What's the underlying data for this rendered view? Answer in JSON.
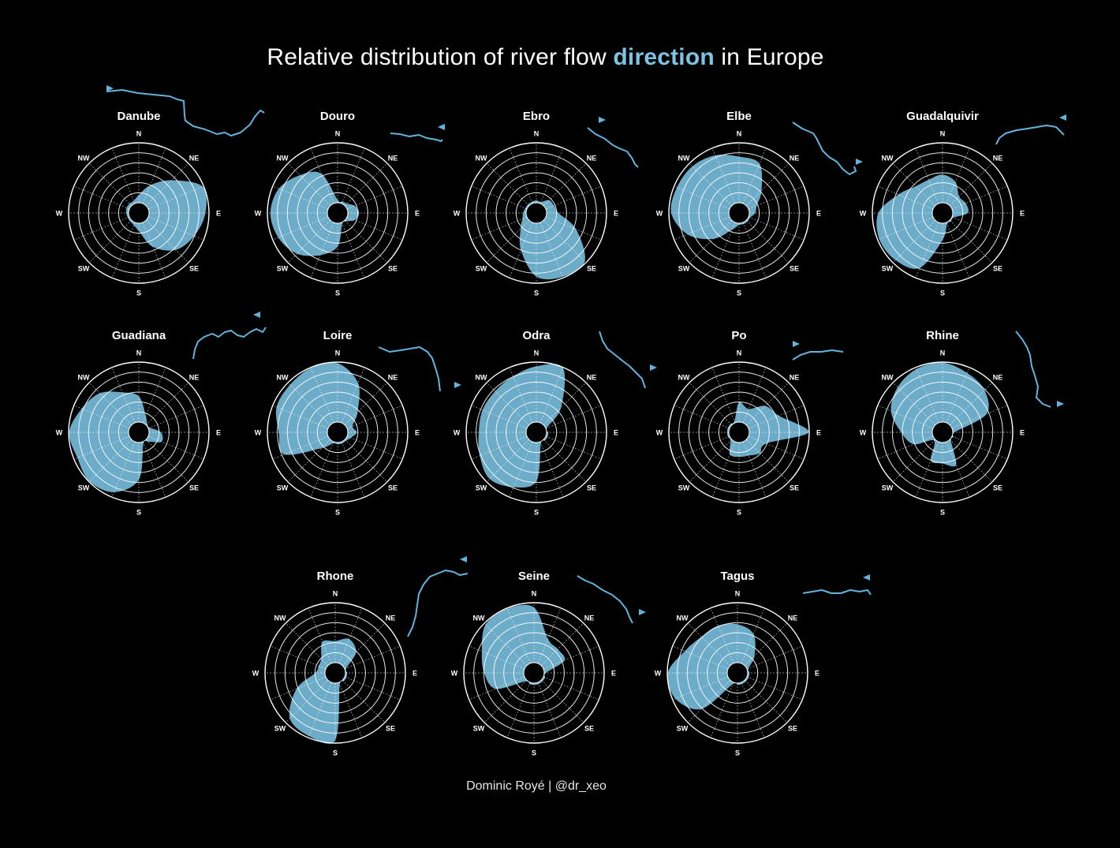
{
  "title": {
    "prefix": "Relative distribution of river flow ",
    "highlight": "direction",
    "suffix": " in Europe"
  },
  "credit": "Dominic Royé | @dr_xeo",
  "colors": {
    "background": "#000000",
    "fill": "#7cc4e4",
    "river_line": "#63b3dc",
    "grid": "#ffffff"
  },
  "compass_labels": [
    "N",
    "NE",
    "E",
    "SE",
    "S",
    "SW",
    "W",
    "NW"
  ],
  "chart_data": {
    "type": "polar-area",
    "directions": [
      "N",
      "NNE",
      "NE",
      "ENE",
      "E",
      "ESE",
      "SE",
      "SSE",
      "S",
      "SSW",
      "SW",
      "WSW",
      "W",
      "WNW",
      "NW",
      "NNW"
    ],
    "rings": 6,
    "grid": true,
    "series": [
      {
        "name": "Danube",
        "values": [
          0.13,
          0.33,
          0.6,
          0.98,
          0.94,
          0.83,
          0.7,
          0.44,
          0.13,
          0.05,
          0.03,
          0.03,
          0.04,
          0.05,
          0.05,
          0.05
        ]
      },
      {
        "name": "Douro",
        "values": [
          0.05,
          0.04,
          0.05,
          0.14,
          0.19,
          0.14,
          0.03,
          0.03,
          0.39,
          0.59,
          0.79,
          0.9,
          0.95,
          0.89,
          0.72,
          0.54
        ]
      },
      {
        "name": "Ebro",
        "values": [
          0.04,
          0.03,
          0.13,
          0.15,
          0.2,
          0.55,
          0.97,
          0.98,
          0.89,
          0.5,
          0.2,
          0.08,
          0.05,
          0.03,
          0.03,
          0.03
        ]
      },
      {
        "name": "Elbe",
        "values": [
          0.77,
          0.72,
          0.36,
          0.15,
          0.1,
          0.03,
          0.03,
          0.03,
          0.03,
          0.13,
          0.44,
          0.76,
          0.96,
          0.95,
          0.93,
          0.87
        ]
      },
      {
        "name": "Guadalquivir",
        "values": [
          0.47,
          0.39,
          0.22,
          0.25,
          0.25,
          0.03,
          0.03,
          0.03,
          0.28,
          0.82,
          0.94,
          0.97,
          0.9,
          0.63,
          0.46,
          0.43
        ]
      },
      {
        "name": "Guadiana",
        "values": [
          0.43,
          0.13,
          0.03,
          0.03,
          0.2,
          0.24,
          0.05,
          0.03,
          0.62,
          0.91,
          0.99,
          0.94,
          0.99,
          0.86,
          0.75,
          0.55
        ]
      },
      {
        "name": "Loire",
        "values": [
          0.98,
          0.72,
          0.3,
          0.1,
          0.15,
          0.07,
          0.03,
          0.03,
          0.03,
          0.03,
          0.2,
          0.79,
          0.81,
          0.93,
          0.95,
          0.99
        ]
      },
      {
        "name": "Odra",
        "values": [
          0.93,
          0.99,
          0.41,
          0.02,
          0.03,
          0.03,
          0.03,
          0.03,
          0.65,
          0.82,
          0.93,
          0.85,
          0.79,
          0.8,
          0.8,
          0.84
        ]
      },
      {
        "name": "Po",
        "values": [
          0.33,
          0.25,
          0.45,
          0.55,
          0.99,
          0.32,
          0.32,
          0.25,
          0.24,
          0.23,
          0.03,
          0.03,
          0.03,
          0.03,
          0.03,
          0.03
        ]
      },
      {
        "name": "Rhine",
        "values": [
          0.99,
          0.9,
          0.82,
          0.62,
          0.03,
          0.03,
          0.03,
          0.42,
          0.35,
          0.34,
          0.03,
          0.35,
          0.52,
          0.76,
          0.89,
          0.97
        ]
      },
      {
        "name": "Rhone",
        "values": [
          0.36,
          0.44,
          0.32,
          0.03,
          0.03,
          0.03,
          0.03,
          0.03,
          0.95,
          0.97,
          0.9,
          0.53,
          0.16,
          0.13,
          0.16,
          0.39
        ]
      },
      {
        "name": "Seine",
        "values": [
          0.92,
          0.44,
          0.39,
          0.38,
          0.03,
          0.03,
          0.03,
          0.03,
          0.03,
          0.03,
          0.03,
          0.52,
          0.66,
          0.77,
          0.97,
          0.99
        ]
      },
      {
        "name": "Tagus",
        "values": [
          0.64,
          0.53,
          0.23,
          0.03,
          0.03,
          0.03,
          0.03,
          0.03,
          0.03,
          0.03,
          0.68,
          0.95,
          0.99,
          0.78,
          0.68,
          0.68
        ]
      }
    ]
  }
}
